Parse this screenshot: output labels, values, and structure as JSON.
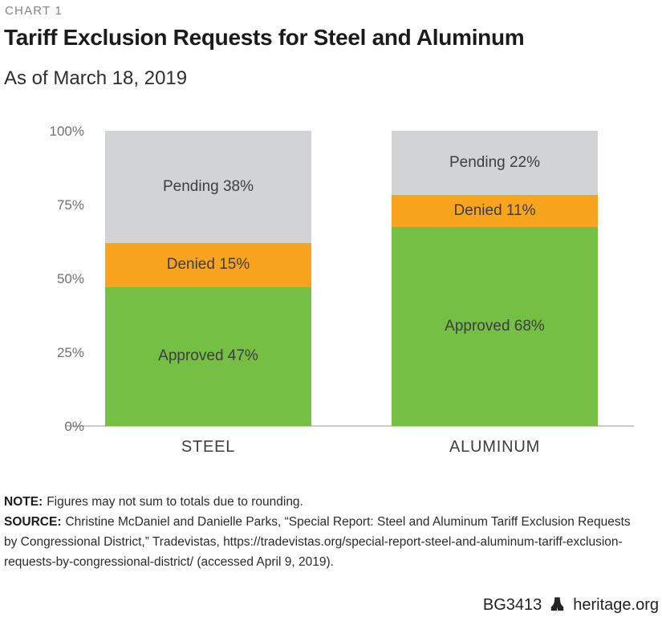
{
  "meta": {
    "chart_label": "CHART 1"
  },
  "header": {
    "title": "Tariff Exclusion Requests for Steel and Aluminum",
    "subtitle": "As of March 18, 2019"
  },
  "chart_data": {
    "type": "bar",
    "stacked": true,
    "unit": "%",
    "categories": [
      "STEEL",
      "ALUMINUM"
    ],
    "series": [
      {
        "name": "Approved",
        "values": [
          47,
          68
        ],
        "color": "#74bf44"
      },
      {
        "name": "Denied",
        "values": [
          15,
          11
        ],
        "color": "#f9a41f"
      },
      {
        "name": "Pending",
        "values": [
          38,
          22
        ],
        "color": "#d2d3d5"
      }
    ],
    "y_ticks": [
      "100%",
      "75%",
      "50%",
      "25%",
      "0%"
    ],
    "ylim": [
      0,
      100
    ],
    "grid": false,
    "legend": "labels-inside-segments",
    "label_format": "{name} {value}%"
  },
  "footnotes": {
    "note_label": "NOTE:",
    "note_text": "Figures may not sum to totals due to rounding.",
    "source_label": "SOURCE:",
    "source_text": "Christine McDaniel and Danielle Parks, “Special Report: Steel and Aluminum Tariff Exclusion Requests by Congressional District,” Tradevistas, https://tradevistas.org/special-report-steel-and-aluminum-tariff-exclusion-requests-by-congressional-district/ (accessed April 9, 2019)."
  },
  "footer": {
    "report_id": "BG3413",
    "site": "heritage.org",
    "logo_icon": "heritage-bell-icon"
  },
  "colors": {
    "approved": "#74bf44",
    "denied": "#f9a41f",
    "pending": "#d2d3d5",
    "axis_line": "#c9cacc",
    "tick_text": "#6f7073",
    "bar_label_text": "#3d3e42",
    "chart_label_text": "#808285",
    "title_text": "#1b1b1d",
    "footnote_text": "#2b2b2d"
  }
}
